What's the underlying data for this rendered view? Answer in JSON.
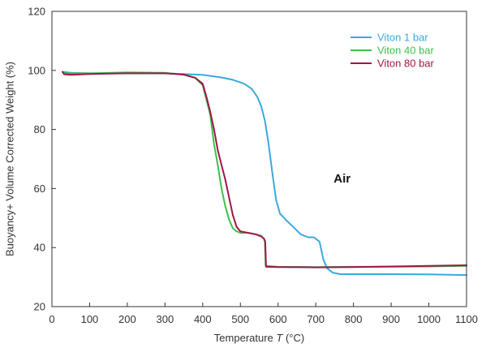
{
  "chart_data": {
    "type": "line",
    "xlabel_prefix": "Temperature ",
    "xlabel_var": "T",
    "xlabel_suffix": " (°C)",
    "ylabel": "Buoyancy+ Volume Corrected Weight (%)",
    "xlim": [
      0,
      1100
    ],
    "ylim": [
      20,
      120
    ],
    "x_ticks": [
      0,
      100,
      200,
      300,
      400,
      500,
      600,
      700,
      800,
      900,
      1000,
      1100
    ],
    "y_ticks": [
      20,
      40,
      60,
      80,
      100,
      120
    ],
    "grid": false,
    "legend_position": "top-right",
    "annotations": [
      {
        "text": "Air",
        "x": 770,
        "y": 62
      }
    ],
    "series": [
      {
        "name": "Viton 1 bar",
        "color": "#3aa9df",
        "points": [
          [
            30,
            99.5
          ],
          [
            50,
            99.2
          ],
          [
            100,
            99.0
          ],
          [
            200,
            99.0
          ],
          [
            300,
            99.0
          ],
          [
            400,
            98.5
          ],
          [
            450,
            97.6
          ],
          [
            480,
            96.8
          ],
          [
            510,
            95.5
          ],
          [
            530,
            93.8
          ],
          [
            545,
            91.0
          ],
          [
            555,
            88.0
          ],
          [
            565,
            83.0
          ],
          [
            575,
            75.0
          ],
          [
            585,
            65.0
          ],
          [
            595,
            56.0
          ],
          [
            605,
            51.5
          ],
          [
            620,
            49.5
          ],
          [
            640,
            47.0
          ],
          [
            660,
            44.5
          ],
          [
            680,
            43.5
          ],
          [
            695,
            43.5
          ],
          [
            710,
            42.0
          ],
          [
            720,
            36.0
          ],
          [
            730,
            33.0
          ],
          [
            745,
            31.5
          ],
          [
            765,
            31.0
          ],
          [
            800,
            31.0
          ],
          [
            900,
            31.0
          ],
          [
            1000,
            30.9
          ],
          [
            1100,
            30.7
          ]
        ]
      },
      {
        "name": "Viton 40 bar",
        "color": "#3fbf4a",
        "points": [
          [
            30,
            99.5
          ],
          [
            33,
            99.0
          ],
          [
            50,
            99.0
          ],
          [
            100,
            99.0
          ],
          [
            200,
            99.3
          ],
          [
            300,
            99.2
          ],
          [
            350,
            98.5
          ],
          [
            380,
            97.5
          ],
          [
            400,
            95.0
          ],
          [
            410,
            90.0
          ],
          [
            420,
            85.0
          ],
          [
            430,
            75.0
          ],
          [
            440,
            68.0
          ],
          [
            450,
            60.0
          ],
          [
            460,
            54.0
          ],
          [
            470,
            49.5
          ],
          [
            480,
            46.5
          ],
          [
            490,
            45.5
          ],
          [
            500,
            45.0
          ],
          [
            520,
            45.0
          ],
          [
            540,
            44.5
          ],
          [
            555,
            44.0
          ],
          [
            562,
            43.0
          ],
          [
            565,
            42.0
          ],
          [
            567,
            33.8
          ],
          [
            600,
            33.5
          ],
          [
            700,
            33.4
          ],
          [
            800,
            33.5
          ],
          [
            900,
            33.5
          ],
          [
            1000,
            33.6
          ],
          [
            1100,
            33.8
          ]
        ]
      },
      {
        "name": "Viton 80 bar",
        "color": "#a0164a",
        "points": [
          [
            28,
            99.5
          ],
          [
            32,
            98.7
          ],
          [
            50,
            98.5
          ],
          [
            100,
            98.8
          ],
          [
            200,
            99.0
          ],
          [
            300,
            99.0
          ],
          [
            350,
            98.6
          ],
          [
            380,
            97.5
          ],
          [
            400,
            95.5
          ],
          [
            410,
            91.0
          ],
          [
            420,
            86.0
          ],
          [
            430,
            80.0
          ],
          [
            440,
            73.0
          ],
          [
            450,
            68.0
          ],
          [
            460,
            63.0
          ],
          [
            470,
            57.0
          ],
          [
            480,
            51.0
          ],
          [
            490,
            47.0
          ],
          [
            500,
            45.5
          ],
          [
            520,
            45.0
          ],
          [
            540,
            44.5
          ],
          [
            555,
            43.8
          ],
          [
            563,
            43.0
          ],
          [
            566,
            42.0
          ],
          [
            568,
            33.5
          ],
          [
            600,
            33.4
          ],
          [
            700,
            33.3
          ],
          [
            800,
            33.4
          ],
          [
            900,
            33.6
          ],
          [
            1000,
            33.8
          ],
          [
            1100,
            34.0
          ]
        ]
      }
    ]
  }
}
